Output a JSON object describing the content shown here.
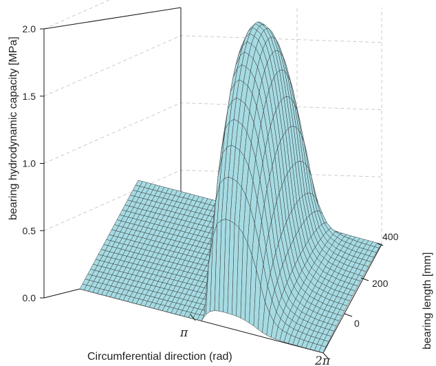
{
  "chart_data": {
    "type": "surface",
    "title": "",
    "xlabel": "Circumferential direction (rad)",
    "ylabel": "bearing length [mm]",
    "zlabel": "bearing hydrodynamic capacity  [MPa]",
    "x_ticks": [
      "π",
      "2π"
    ],
    "y_ticks": [
      "0",
      "200",
      "400"
    ],
    "z_ticks": [
      "0.0",
      "0.5",
      "1.0",
      "1.5",
      "2.0"
    ],
    "zlim": [
      0,
      2.0
    ],
    "ylim": [
      0,
      400
    ],
    "xlim": [
      0,
      6.2832
    ],
    "surface_color": "#a6dbe3",
    "mesh_color": "#333333",
    "series": [
      {
        "name": "",
        "description_points_y_mid": true,
        "x": [
          0.0,
          3.14,
          3.3,
          3.5,
          3.7,
          3.9,
          4.1,
          4.3,
          4.5,
          4.7,
          4.9,
          5.1,
          5.4,
          5.8,
          6.28
        ],
        "z": [
          0.0,
          0.0,
          1.3,
          1.75,
          1.82,
          1.8,
          1.7,
          1.45,
          1.05,
          0.55,
          0.25,
          0.12,
          0.06,
          0.03,
          0.02
        ]
      }
    ]
  }
}
